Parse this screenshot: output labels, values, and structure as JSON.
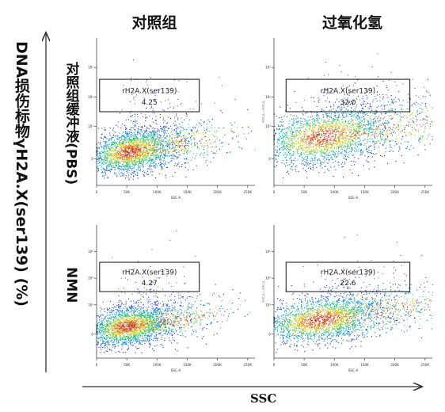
{
  "figure": {
    "column_titles": [
      "对照组",
      "过氧化氢"
    ],
    "row_labels": [
      "对照组缓冲液(PBS)",
      "NMN"
    ],
    "y_axis_title": "DNA损伤标物γH2A.X(ser139) (%)",
    "x_axis_title": "SSC"
  },
  "chart_data": [
    {
      "type": "scatter",
      "row": "对照组缓冲液(PBS)",
      "column": "对照组",
      "xlabel": "SSC-A",
      "ylabel": "",
      "gate_label": "rH2A.X(ser139)",
      "gate_value": "4.25",
      "xlim": [
        0,
        262144
      ],
      "ylim": [
        0,
        5
      ],
      "x_ticks": [
        "0",
        "50K",
        "100K",
        "150K",
        "200K",
        "250K"
      ],
      "y_ticks": [
        "0",
        "10³",
        "10⁴",
        "10⁵"
      ],
      "gate": {
        "x": [
          5000,
          170000
        ],
        "y": [
          2.5,
          3.6
        ]
      },
      "cloud": {
        "cx": 55000,
        "cy": 1.15,
        "sx": 38000,
        "sy": 0.38
      }
    },
    {
      "type": "scatter",
      "row": "对照组缓冲液(PBS)",
      "column": "过氧化氢",
      "xlabel": "SSC-A",
      "ylabel": "FITC-A :: FITC-A",
      "gate_label": "rH2A.X(ser139)",
      "gate_value": "32.0",
      "xlim": [
        0,
        262144
      ],
      "ylim": [
        0,
        5
      ],
      "x_ticks": [
        "0",
        "50K",
        "100K",
        "150K",
        "200K",
        "250K"
      ],
      "y_ticks": [
        "0",
        "10³",
        "10⁴",
        "10⁵"
      ],
      "gate": {
        "x": [
          20000,
          225000
        ],
        "y": [
          2.5,
          3.6
        ]
      },
      "cloud": {
        "cx": 80000,
        "cy": 1.65,
        "sx": 55000,
        "sy": 0.5
      }
    },
    {
      "type": "scatter",
      "row": "NMN",
      "column": "对照组",
      "xlabel": "SSC-A",
      "ylabel": "",
      "gate_label": "rH2A.X(ser139)",
      "gate_value": "4.27",
      "xlim": [
        0,
        262144
      ],
      "ylim": [
        0,
        5
      ],
      "x_ticks": [
        "0",
        "50K",
        "100K",
        "150K",
        "200K",
        "250K"
      ],
      "y_ticks": [
        "0",
        "10³",
        "10⁴",
        "10⁵"
      ],
      "gate": {
        "x": [
          5000,
          170000
        ],
        "y": [
          2.5,
          3.6
        ]
      },
      "cloud": {
        "cx": 50000,
        "cy": 1.2,
        "sx": 36000,
        "sy": 0.38
      }
    },
    {
      "type": "scatter",
      "row": "NMN",
      "column": "过氧化氢",
      "xlabel": "SSC-A",
      "ylabel": "FITC-A :: FITC-A",
      "gate_label": "rH2A.X(ser139)",
      "gate_value": "22.6",
      "xlim": [
        0,
        262144
      ],
      "ylim": [
        0,
        5
      ],
      "x_ticks": [
        "0",
        "50K",
        "100K",
        "150K",
        "200K",
        "250K"
      ],
      "y_ticks": [
        "0",
        "10³",
        "10⁴",
        "10⁵"
      ],
      "gate": {
        "x": [
          20000,
          225000
        ],
        "y": [
          2.5,
          3.6
        ]
      },
      "cloud": {
        "cx": 75000,
        "cy": 1.45,
        "sx": 52000,
        "sy": 0.45
      }
    }
  ]
}
